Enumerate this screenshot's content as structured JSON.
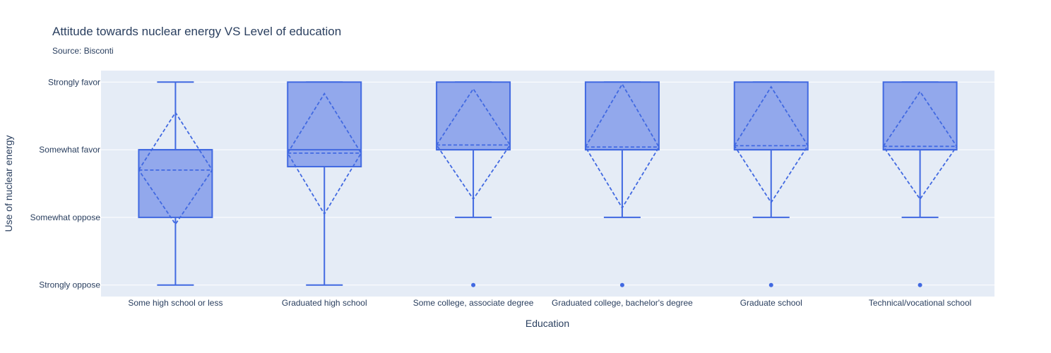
{
  "chart_data": {
    "type": "box",
    "title": "Attitude towards nuclear energy VS Level of education",
    "subtitle": "Source: Bisconti",
    "xlabel": "Education",
    "ylabel": "Use of nuclear energy",
    "y_categories": [
      "Strongly oppose",
      "Somewhat oppose",
      "Somewhat favor",
      "Strongly favor"
    ],
    "y_range": [
      -0.17,
      3.17
    ],
    "grid": true,
    "legend": "none",
    "colors": {
      "line": "#4169e1",
      "fill": "#92a8ec",
      "plot_bg": "#e5ecf6",
      "grid": "#ffffff"
    },
    "categories": [
      "Some high school or less",
      "Graduated high school",
      "Some college, associate degree",
      "Graduated college, bachelor's degree",
      "Graduate school",
      "Technical/vocational school"
    ],
    "boxes": [
      {
        "lower_fence": 0,
        "q1": 1,
        "median": 2,
        "q3": 2,
        "upper_fence": 3,
        "mean": 1.7,
        "mean_minus_sd": 0.9,
        "mean_plus_sd": 2.55,
        "outliers": []
      },
      {
        "lower_fence": 0,
        "q1": 1.75,
        "median": 2,
        "q3": 3,
        "upper_fence": 3,
        "mean": 1.95,
        "mean_minus_sd": 1.05,
        "mean_plus_sd": 2.83,
        "outliers": []
      },
      {
        "lower_fence": 1,
        "q1": 2,
        "median": 2,
        "q3": 3,
        "upper_fence": 3,
        "mean": 2.07,
        "mean_minus_sd": 1.27,
        "mean_plus_sd": 2.9,
        "outliers": [
          0
        ]
      },
      {
        "lower_fence": 1,
        "q1": 2,
        "median": 2,
        "q3": 3,
        "upper_fence": 3,
        "mean": 2.04,
        "mean_minus_sd": 1.14,
        "mean_plus_sd": 2.97,
        "outliers": [
          0
        ]
      },
      {
        "lower_fence": 1,
        "q1": 2,
        "median": 2,
        "q3": 3,
        "upper_fence": 3,
        "mean": 2.06,
        "mean_minus_sd": 1.22,
        "mean_plus_sd": 2.93,
        "outliers": [
          0
        ]
      },
      {
        "lower_fence": 1,
        "q1": 2,
        "median": 2,
        "q3": 3,
        "upper_fence": 3,
        "mean": 2.05,
        "mean_minus_sd": 1.27,
        "mean_plus_sd": 2.86,
        "outliers": [
          0
        ]
      }
    ]
  }
}
